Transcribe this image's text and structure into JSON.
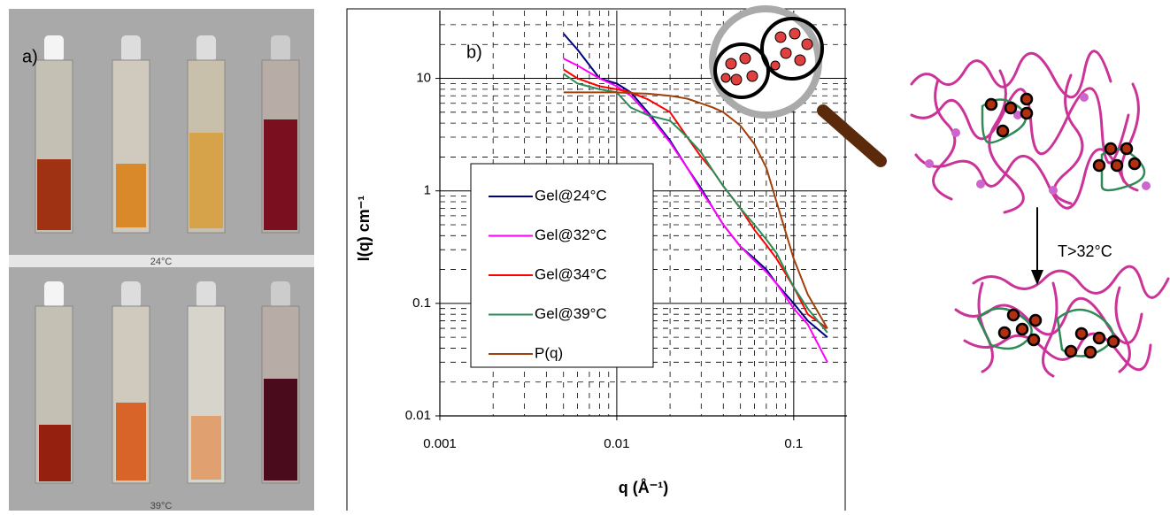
{
  "panel_a": {
    "label": "a)",
    "captions": [
      "24°C",
      "39°C"
    ]
  },
  "chart_data": {
    "type": "line",
    "annotation": "b)",
    "x_label": "q (Å⁻¹)",
    "y_label": "I(q) cm⁻¹",
    "xscale": "log",
    "yscale": "log",
    "grid": true,
    "minor_grid": true,
    "legend": "left",
    "xlim": [
      0.001,
      0.2
    ],
    "ylim": [
      0.01,
      40
    ],
    "xticks": [
      0.001,
      0.01,
      0.1
    ],
    "yticks": [
      0.01,
      0.1,
      1,
      10
    ],
    "x": [
      0.005,
      0.006,
      0.008,
      0.01,
      0.012,
      0.015,
      0.02,
      0.025,
      0.03,
      0.035,
      0.04,
      0.05,
      0.06,
      0.07,
      0.08,
      0.1,
      0.12,
      0.155
    ],
    "series": [
      {
        "name": "Gel@24°C",
        "color": "#000080",
        "values": [
          25,
          18,
          10,
          9,
          7.5,
          5,
          2.8,
          1.6,
          1.05,
          0.7,
          0.5,
          0.32,
          0.25,
          0.2,
          0.15,
          0.1,
          0.07,
          0.05
        ]
      },
      {
        "name": "Gel@32°C",
        "color": "#ff00ff",
        "values": [
          15,
          13,
          10,
          8.5,
          7,
          4.8,
          2.7,
          1.6,
          1.0,
          0.7,
          0.5,
          0.32,
          0.24,
          0.19,
          0.15,
          0.09,
          0.065,
          0.03
        ]
      },
      {
        "name": "Gel@34°C",
        "color": "#ff0000",
        "values": [
          12,
          10,
          8.5,
          8,
          7.5,
          6.5,
          5,
          3,
          2,
          1.5,
          1.1,
          0.7,
          0.45,
          0.33,
          0.25,
          0.14,
          0.08,
          0.06
        ]
      },
      {
        "name": "Gel@39°C",
        "color": "#2e8b57",
        "values": [
          11,
          9,
          8,
          7.5,
          5.5,
          4.7,
          4.2,
          3,
          2.2,
          1.5,
          1.1,
          0.7,
          0.5,
          0.37,
          0.28,
          0.14,
          0.09,
          0.055
        ]
      },
      {
        "name": "P(q)",
        "color": "#a0400a",
        "values": [
          7.5,
          7.5,
          7.5,
          7.5,
          7.4,
          7.3,
          7,
          6.6,
          6,
          5.5,
          5,
          3.8,
          2.6,
          1.6,
          0.8,
          0.25,
          0.12,
          0.06
        ]
      }
    ]
  },
  "diagram": {
    "label": "T>32°C"
  }
}
